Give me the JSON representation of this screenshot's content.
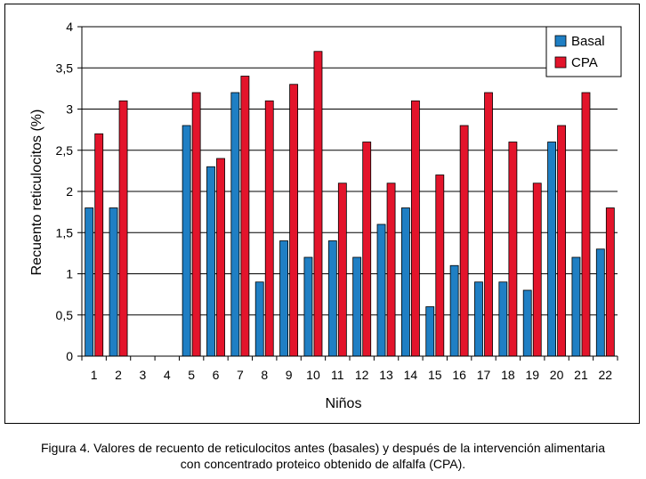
{
  "chart_data": {
    "type": "bar",
    "xlabel": "Niños",
    "ylabel": "Recuento reticulocitos (%)",
    "ylim": [
      0,
      4
    ],
    "yticks": [
      "0",
      "0,5",
      "1",
      "1,5",
      "2",
      "2,5",
      "3",
      "3,5",
      "4"
    ],
    "categories": [
      "1",
      "2",
      "3",
      "4",
      "5",
      "6",
      "7",
      "8",
      "9",
      "10",
      "11",
      "12",
      "13",
      "14",
      "15",
      "16",
      "17",
      "18",
      "19",
      "20",
      "21",
      "22"
    ],
    "series": [
      {
        "name": "Basal",
        "color": "#1f7fc4",
        "values": [
          1.8,
          1.8,
          0,
          0,
          2.8,
          2.3,
          3.2,
          0.9,
          1.4,
          1.2,
          1.4,
          1.2,
          1.6,
          1.8,
          0.6,
          1.1,
          0.9,
          0.9,
          0.8,
          2.6,
          1.2,
          1.3
        ]
      },
      {
        "name": "CPA",
        "color": "#e3142b",
        "values": [
          2.7,
          3.1,
          0,
          0,
          3.2,
          2.4,
          3.4,
          3.1,
          3.3,
          3.7,
          2.1,
          2.6,
          2.1,
          3.1,
          2.2,
          2.8,
          3.2,
          2.6,
          2.1,
          2.8,
          3.2,
          1.8
        ]
      }
    ],
    "grid": true,
    "legend_position": "top-right"
  },
  "caption": {
    "line1": "Figura 4. Valores de recuento de reticulocitos antes (basales) y después de la intervención alimentaria",
    "line2": "con concentrado proteico obtenido de alfalfa (CPA)."
  }
}
